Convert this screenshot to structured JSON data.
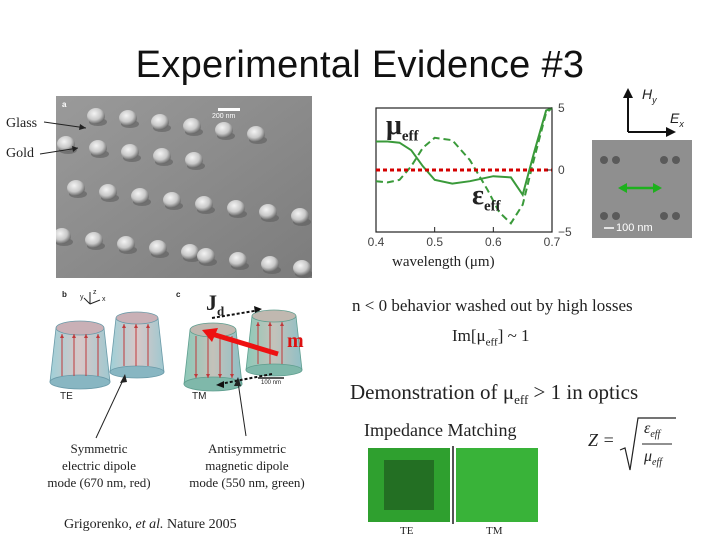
{
  "title": "Experimental Evidence #3",
  "sem": {
    "panel": "a",
    "glass_label": "Glass",
    "gold_label": "Gold",
    "scale": "200 nm"
  },
  "pillars": {
    "panel_b": "b",
    "panel_c": "c",
    "axis_x": "x",
    "axis_y": "y",
    "axis_z": "z",
    "jd": "Jd",
    "jd_main": "J",
    "jd_sub": "d",
    "m": "m",
    "scale": "100 nm",
    "te": "TE",
    "tm": "TM"
  },
  "captions": {
    "left": [
      "Symmetric",
      "electric dipole",
      "mode (670 nm, red)"
    ],
    "right": [
      "Antisymmetric",
      "magnetic dipole",
      "mode (550 nm, green)"
    ]
  },
  "citation": {
    "author": "Grigorenko, ",
    "etal": "et al.",
    "journal": " Nature 2005"
  },
  "chart_data": {
    "type": "line",
    "xlabel": "wavelength (μm)",
    "ylim": [
      -5,
      5
    ],
    "xlim": [
      0.4,
      0.7
    ],
    "x_ticks": [
      "0.4",
      "0.5",
      "0.6",
      "0.7"
    ],
    "y_ticks": [
      "5",
      "0",
      "−5"
    ],
    "series": [
      {
        "name": "μeff",
        "x": [
          0.4,
          0.42,
          0.44,
          0.46,
          0.48,
          0.5,
          0.53,
          0.56,
          0.6,
          0.63,
          0.65,
          0.67,
          0.69,
          0.7
        ],
        "y": [
          2.3,
          2.3,
          2.2,
          1.6,
          0.3,
          -0.8,
          -1.1,
          -0.9,
          -0.5,
          -0.6,
          -2.0,
          1.5,
          4.8,
          5.0
        ]
      },
      {
        "name": "εeff",
        "x": [
          0.4,
          0.42,
          0.44,
          0.46,
          0.48,
          0.5,
          0.53,
          0.56,
          0.59,
          0.61,
          0.63,
          0.65,
          0.67,
          0.69,
          0.7
        ],
        "y": [
          -0.9,
          -1.0,
          -0.8,
          0.3,
          1.8,
          2.6,
          2.4,
          0.8,
          -1.6,
          -3.4,
          -4.3,
          -2.8,
          1.0,
          4.6,
          5.0
        ]
      },
      {
        "name": "",
        "x": [
          0.4,
          0.7
        ],
        "y": [
          0,
          0
        ]
      }
    ],
    "mu_main": "μ",
    "eps_main": "ε",
    "sub": "eff"
  },
  "inset": {
    "hy_main": "H",
    "hy_sub": "y",
    "ex_main": "E",
    "ex_sub": "x",
    "scale": "100 nm"
  },
  "text_block": {
    "line1": "n < 0 behavior washed out by high losses",
    "line2_pre": "Im[",
    "line2_mu": "μ",
    "line2_sub": "eff",
    "line2_post": "] ~ 1",
    "demo_pre": "Demonstration of ",
    "demo_mu": "μ",
    "demo_sub": "eff",
    "demo_post": " > 1 in optics",
    "impedance": "Impedance Matching",
    "formula_z": "Z =",
    "formula_num": "ε",
    "formula_den": "μ",
    "formula_sub": "eff"
  },
  "samples": {
    "te": "TE",
    "tm": "TM"
  },
  "colors": {
    "green": "#2e8b2e",
    "red_dash": "#cc0000",
    "arrow_red": "#ee1111"
  }
}
